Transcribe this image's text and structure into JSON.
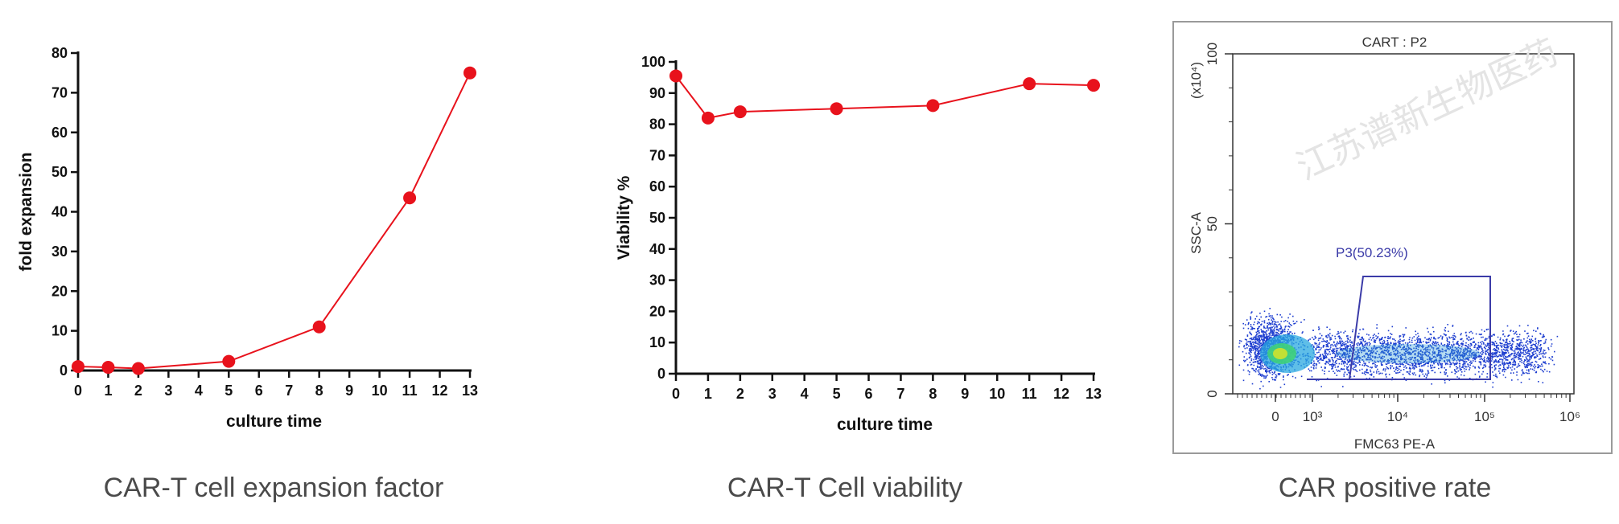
{
  "chart_data": [
    {
      "type": "line",
      "caption": "CAR-T cell expansion factor",
      "xlabel": "culture time",
      "ylabel": "fold expansion",
      "xlim": [
        0,
        13
      ],
      "ylim": [
        0,
        80
      ],
      "xticks": [
        "0",
        "1",
        "2",
        "3",
        "4",
        "5",
        "6",
        "7",
        "8",
        "9",
        "10",
        "11",
        "12",
        "13"
      ],
      "yticks": [
        "0",
        "10",
        "20",
        "30",
        "40",
        "50",
        "60",
        "70",
        "80"
      ],
      "color": "#e8121c",
      "series": [
        {
          "x": [
            0,
            1,
            2,
            5,
            8,
            11,
            13
          ],
          "y": [
            1,
            0.8,
            0.5,
            2.3,
            11,
            43.5,
            75
          ]
        }
      ]
    },
    {
      "type": "line",
      "caption": "CAR-T Cell viability",
      "xlabel": "culture time",
      "ylabel": "Viability %",
      "xlim": [
        0,
        13
      ],
      "ylim": [
        0,
        100
      ],
      "xticks": [
        "0",
        "1",
        "2",
        "3",
        "4",
        "5",
        "6",
        "7",
        "8",
        "9",
        "10",
        "11",
        "12",
        "13"
      ],
      "yticks": [
        "0",
        "10",
        "20",
        "30",
        "40",
        "50",
        "60",
        "70",
        "80",
        "90",
        "100"
      ],
      "color": "#e8121c",
      "series": [
        {
          "x": [
            0,
            1,
            2,
            5,
            8,
            11,
            13
          ],
          "y": [
            95.5,
            82,
            84,
            85,
            86,
            93,
            92.5
          ]
        }
      ]
    },
    {
      "type": "scatter",
      "caption": "CAR positive rate",
      "title": "CART : P2",
      "xlabel": "FMC63 PE-A",
      "ylabel": "SSC-A",
      "yunit": "(x10⁴)",
      "xscale": "biexponential",
      "xticks": [
        "0",
        "10³",
        "10⁴",
        "10⁵",
        "10⁶"
      ],
      "yticks": [
        "0",
        "50",
        "100"
      ],
      "gate": {
        "label": "P3(50.23%)",
        "percent": 50.23
      },
      "gate_color": "#3b3ba8",
      "watermark": "江苏谱新生物医药"
    }
  ]
}
